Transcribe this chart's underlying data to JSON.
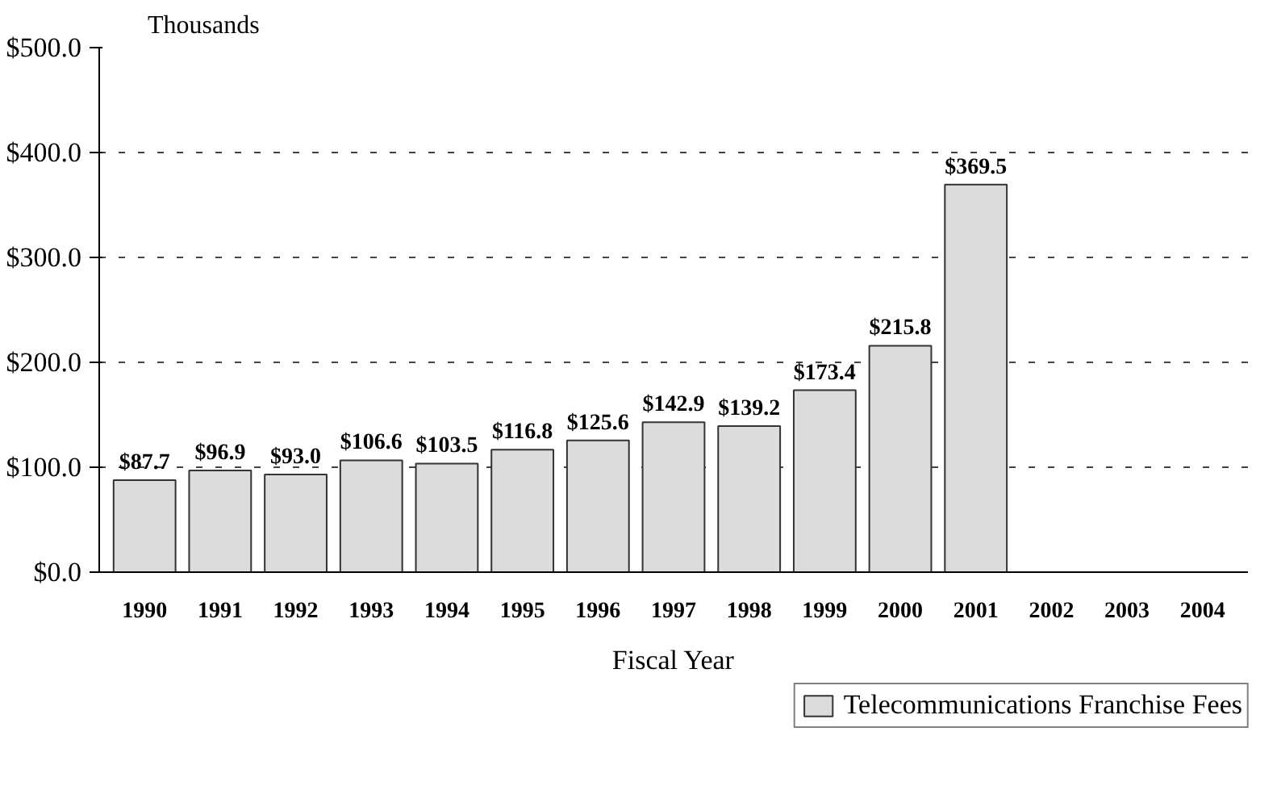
{
  "chart_data": {
    "type": "bar",
    "ylabel": "Thousands",
    "xlabel": "Fiscal Year",
    "categories": [
      "1990",
      "1991",
      "1992",
      "1993",
      "1994",
      "1995",
      "1996",
      "1997",
      "1998",
      "1999",
      "2000",
      "2001",
      "2002",
      "2003",
      "2004"
    ],
    "series": [
      {
        "name": "Telecommunications Franchise Fees",
        "color": "#dcdcdc",
        "values": [
          87.7,
          96.9,
          93.0,
          106.6,
          103.5,
          116.8,
          125.6,
          142.9,
          139.2,
          173.4,
          215.8,
          369.5,
          null,
          null,
          null
        ],
        "value_labels": [
          "$87.7",
          "$96.9",
          "$93.0",
          "$106.6",
          "$103.5",
          "$116.8",
          "$125.6",
          "$142.9",
          "$139.2",
          "$173.4",
          "$215.8",
          "$369.5",
          null,
          null,
          null
        ]
      }
    ],
    "ylim": [
      0,
      500
    ],
    "yticks": [
      {
        "value": 0,
        "label": "$0.0"
      },
      {
        "value": 100,
        "label": "$100.0"
      },
      {
        "value": 200,
        "label": "$200.0"
      },
      {
        "value": 300,
        "label": "$300.0"
      },
      {
        "value": 400,
        "label": "$400.0"
      },
      {
        "value": 500,
        "label": "$500.0"
      }
    ],
    "grid": "y",
    "legend": "bottom right"
  }
}
